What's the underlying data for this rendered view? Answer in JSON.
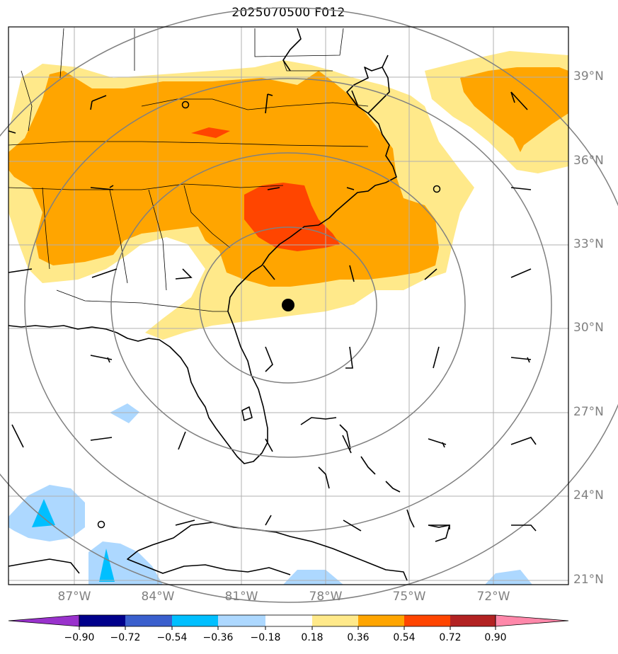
{
  "title": "2025070500 F012",
  "lat_labels": [
    "39°N",
    "36°N",
    "33°N",
    "30°N",
    "27°N",
    "24°N",
    "21°N"
  ],
  "lon_labels": [
    "87°W",
    "84°W",
    "81°W",
    "78°W",
    "75°W",
    "72°W"
  ],
  "colorbar": {
    "ticks": [
      "−0.90",
      "−0.72",
      "−0.54",
      "−0.36",
      "−0.18",
      "0.18",
      "0.36",
      "0.54",
      "0.72",
      "0.90"
    ],
    "colors": [
      "#9932cc",
      "#00008b",
      "#3a5fcd",
      "#00bfff",
      "#add8ff",
      "#ffffff",
      "#ffe98a",
      "#ffa500",
      "#ff4500",
      "#b22222",
      "#ff88aa"
    ]
  },
  "center_marker": {
    "lat": 30.8,
    "lon": -79.2
  },
  "map_extent": {
    "lon_min": -89.5,
    "lon_max": -69.5,
    "lat_min": 20.8,
    "lat_max": 40.8
  }
}
